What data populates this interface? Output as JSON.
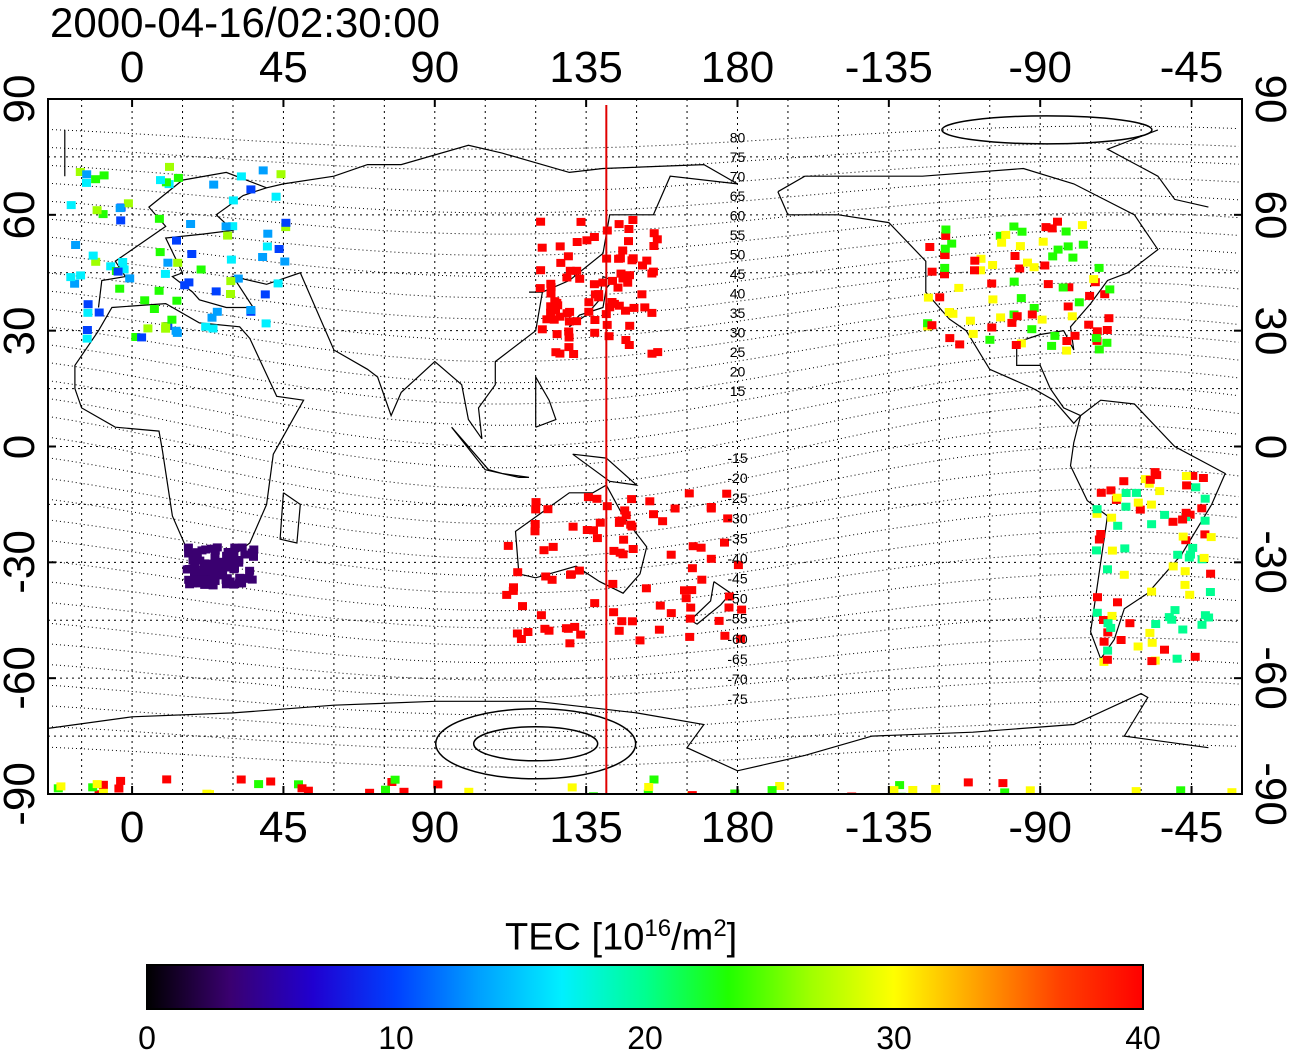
{
  "title": "2000-04-16/02:30:00",
  "map": {
    "lon_ticks": [
      "0",
      "45",
      "90",
      "135",
      "180",
      "-135",
      "-90",
      "-45"
    ],
    "lon_values": [
      0,
      45,
      90,
      135,
      180,
      225,
      270,
      315
    ],
    "lat_ticks": [
      "90",
      "60",
      "30",
      "0",
      "-30",
      "-60",
      "-90"
    ],
    "lat_values": [
      90,
      60,
      30,
      0,
      -30,
      -60,
      -90
    ],
    "lon_range": [
      -25,
      330
    ],
    "lat_range": [
      -90,
      90
    ],
    "meridian_line_lon": 141,
    "meridian_color": "#e00000",
    "contour_labels_north": [
      "80",
      "75",
      "70",
      "65",
      "60",
      "55",
      "50",
      "45",
      "40",
      "35",
      "30",
      "25",
      "20",
      "15"
    ],
    "contour_labels_south": [
      "-15",
      "-20",
      "-25",
      "-30",
      "-35",
      "-40",
      "-45",
      "-50",
      "-55",
      "-60",
      "-65",
      "-70",
      "-75"
    ]
  },
  "colorbar": {
    "label_main": "TEC  [10",
    "label_sup1": "16",
    "label_mid": "/m",
    "label_sup2": "2",
    "label_end": "]",
    "ticks": [
      "0",
      "10",
      "20",
      "30",
      "40"
    ],
    "tick_values": [
      0,
      10,
      20,
      30,
      40
    ],
    "range": [
      0,
      40
    ],
    "colors": [
      "#000000",
      "#3a0070",
      "#2000d0",
      "#0040ff",
      "#00a0ff",
      "#00f0ff",
      "#00ff90",
      "#20ff00",
      "#a0ff00",
      "#ffff00",
      "#ffa000",
      "#ff4000",
      "#ff0000"
    ]
  },
  "tec_regions": [
    {
      "name": "europe",
      "lon": [
        -20,
        45
      ],
      "lat": [
        28,
        75
      ],
      "values": [
        10,
        14,
        18,
        22,
        28
      ]
    },
    {
      "name": "east-asia",
      "lon": [
        120,
        155
      ],
      "lat": [
        25,
        60
      ],
      "values": [
        40
      ]
    },
    {
      "name": "north-america",
      "lon": [
        -125,
        -70
      ],
      "lat": [
        25,
        60
      ],
      "values": [
        40,
        30,
        22
      ]
    },
    {
      "name": "south-america",
      "lon": [
        -75,
        -40
      ],
      "lat": [
        -55,
        -5
      ],
      "values": [
        40,
        30,
        20
      ]
    },
    {
      "name": "southern-africa",
      "lon": [
        15,
        35
      ],
      "lat": [
        -35,
        -25
      ],
      "values": [
        4
      ]
    },
    {
      "name": "australia-nz",
      "lon": [
        110,
        180
      ],
      "lat": [
        -50,
        -10
      ],
      "values": [
        40
      ]
    },
    {
      "name": "antarctic-band",
      "lon": [
        -25,
        330
      ],
      "lat": [
        -90,
        -85
      ],
      "values": [
        22,
        30,
        40
      ]
    }
  ]
}
